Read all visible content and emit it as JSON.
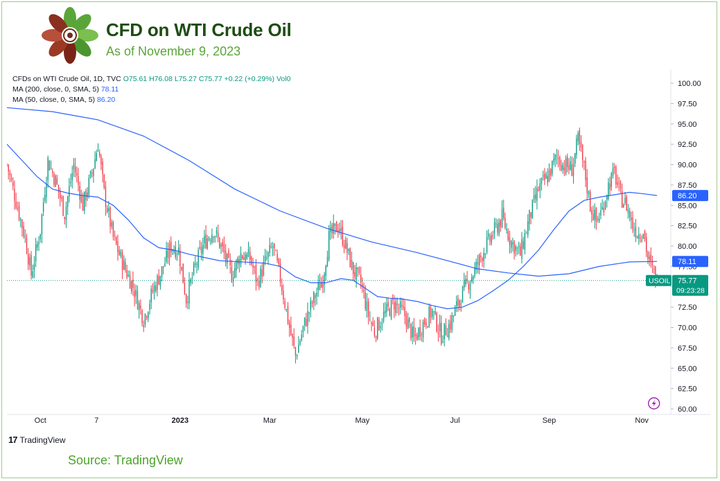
{
  "header": {
    "title": "CFD on WTI Crude Oil",
    "subtitle": "As of November 9, 2023"
  },
  "legend": {
    "main_label": "CFDs on WTI Crude Oil, 1D, TVC",
    "ohlc": {
      "o": "O75.61",
      "h": "H76.08",
      "l": "L75.27",
      "c": "C75.77",
      "chg": "+0.22 (+0.29%)",
      "vol": "Vol0"
    },
    "ma200_label": "MA (200, close, 0, SMA, 5)",
    "ma200_value": "78.11",
    "ma50_label": "MA (50, close, 0, SMA, 5)",
    "ma50_value": "86.20"
  },
  "footer": {
    "brand": "TradingView",
    "source": "Source: TradingView"
  },
  "colors": {
    "up": "#089981",
    "down": "#f23645",
    "ma": "#2962ff",
    "title": "#1d4d13",
    "accent": "#5aa53a"
  },
  "chart_data": {
    "type": "candlestick",
    "ylim": [
      60,
      100
    ],
    "y_ticks": [
      "100.00",
      "97.50",
      "95.00",
      "92.50",
      "90.00",
      "87.50",
      "85.00",
      "82.50",
      "80.00",
      "77.50",
      "75.00",
      "72.50",
      "70.00",
      "67.50",
      "65.00",
      "62.50",
      "60.00"
    ],
    "x_ticks": [
      {
        "label": "Oct",
        "day": 22,
        "bold": false
      },
      {
        "label": "7",
        "day": 59,
        "bold": false
      },
      {
        "label": "2023",
        "day": 114,
        "bold": true
      },
      {
        "label": "Mar",
        "day": 173,
        "bold": false
      },
      {
        "label": "May",
        "day": 234,
        "bold": false
      },
      {
        "label": "Jul",
        "day": 295,
        "bold": false
      },
      {
        "label": "Sep",
        "day": 357,
        "bold": false
      },
      {
        "label": "Nov",
        "day": 418,
        "bold": false
      }
    ],
    "last_price": {
      "symbol": "USOIL",
      "value": "75.77",
      "countdown": "09:23:28",
      "y": 75.77
    },
    "ma_tags": [
      {
        "value": "86.20",
        "y": 86.2
      },
      {
        "value": "78.11",
        "y": 78.11
      }
    ],
    "key_closes": [
      [
        0,
        90.0
      ],
      [
        6,
        85.5
      ],
      [
        12,
        81.0
      ],
      [
        16,
        76.5
      ],
      [
        22,
        82.0
      ],
      [
        27,
        90.5
      ],
      [
        32,
        88.0
      ],
      [
        38,
        84.0
      ],
      [
        44,
        90.0
      ],
      [
        50,
        85.0
      ],
      [
        56,
        89.0
      ],
      [
        60,
        92.5
      ],
      [
        64,
        86.5
      ],
      [
        70,
        81.0
      ],
      [
        76,
        78.0
      ],
      [
        83,
        75.0
      ],
      [
        90,
        71.0
      ],
      [
        96,
        74.5
      ],
      [
        102,
        77.0
      ],
      [
        108,
        80.0
      ],
      [
        113,
        79.5
      ],
      [
        118,
        73.5
      ],
      [
        124,
        77.5
      ],
      [
        130,
        80.5
      ],
      [
        136,
        82.0
      ],
      [
        142,
        79.5
      ],
      [
        148,
        76.5
      ],
      [
        154,
        79.0
      ],
      [
        160,
        78.5
      ],
      [
        165,
        75.5
      ],
      [
        170,
        78.0
      ],
      [
        175,
        80.0
      ],
      [
        180,
        76.0
      ],
      [
        186,
        70.0
      ],
      [
        190,
        66.5
      ],
      [
        196,
        70.5
      ],
      [
        202,
        73.5
      ],
      [
        208,
        76.0
      ],
      [
        212,
        81.0
      ],
      [
        218,
        82.5
      ],
      [
        222,
        80.5
      ],
      [
        228,
        77.0
      ],
      [
        233,
        75.5
      ],
      [
        238,
        71.5
      ],
      [
        242,
        69.5
      ],
      [
        248,
        71.5
      ],
      [
        255,
        73.0
      ],
      [
        262,
        71.5
      ],
      [
        268,
        68.5
      ],
      [
        274,
        70.5
      ],
      [
        280,
        72.0
      ],
      [
        286,
        69.0
      ],
      [
        292,
        70.5
      ],
      [
        298,
        73.5
      ],
      [
        302,
        75.0
      ],
      [
        308,
        77.0
      ],
      [
        314,
        79.5
      ],
      [
        320,
        81.5
      ],
      [
        326,
        83.5
      ],
      [
        332,
        80.5
      ],
      [
        338,
        79.0
      ],
      [
        344,
        83.5
      ],
      [
        350,
        87.0
      ],
      [
        356,
        88.5
      ],
      [
        362,
        91.0
      ],
      [
        366,
        90.0
      ],
      [
        372,
        89.5
      ],
      [
        376,
        93.0
      ],
      [
        380,
        89.5
      ],
      [
        384,
        85.0
      ],
      [
        388,
        83.0
      ],
      [
        392,
        84.5
      ],
      [
        396,
        87.5
      ],
      [
        400,
        89.0
      ],
      [
        404,
        86.0
      ],
      [
        408,
        85.0
      ],
      [
        412,
        82.5
      ],
      [
        416,
        81.5
      ],
      [
        419,
        82.0
      ],
      [
        422,
        78.5
      ],
      [
        425,
        77.0
      ],
      [
        428,
        75.77
      ]
    ],
    "ma200": [
      [
        0,
        97.0
      ],
      [
        30,
        96.5
      ],
      [
        60,
        95.5
      ],
      [
        90,
        93.5
      ],
      [
        120,
        90.5
      ],
      [
        150,
        87.0
      ],
      [
        180,
        84.3
      ],
      [
        210,
        82.2
      ],
      [
        240,
        80.5
      ],
      [
        270,
        79.2
      ],
      [
        290,
        78.2
      ],
      [
        310,
        77.2
      ],
      [
        330,
        76.7
      ],
      [
        350,
        76.3
      ],
      [
        370,
        76.6
      ],
      [
        390,
        77.5
      ],
      [
        410,
        78.05
      ],
      [
        428,
        78.11
      ]
    ],
    "ma50": [
      [
        0,
        92.5
      ],
      [
        10,
        90.5
      ],
      [
        20,
        88.5
      ],
      [
        30,
        87.0
      ],
      [
        40,
        86.5
      ],
      [
        50,
        86.2
      ],
      [
        60,
        86.0
      ],
      [
        70,
        85.0
      ],
      [
        80,
        83.2
      ],
      [
        90,
        81.0
      ],
      [
        100,
        79.8
      ],
      [
        110,
        79.5
      ],
      [
        120,
        79.0
      ],
      [
        130,
        78.6
      ],
      [
        140,
        78.2
      ],
      [
        150,
        78.1
      ],
      [
        160,
        78.0
      ],
      [
        170,
        77.9
      ],
      [
        180,
        77.5
      ],
      [
        190,
        76.2
      ],
      [
        200,
        75.5
      ],
      [
        210,
        75.5
      ],
      [
        220,
        76.0
      ],
      [
        228,
        75.8
      ],
      [
        236,
        74.8
      ],
      [
        244,
        73.8
      ],
      [
        252,
        73.6
      ],
      [
        260,
        73.5
      ],
      [
        270,
        73.2
      ],
      [
        280,
        72.7
      ],
      [
        290,
        72.3
      ],
      [
        300,
        72.5
      ],
      [
        310,
        73.3
      ],
      [
        320,
        74.5
      ],
      [
        330,
        75.8
      ],
      [
        340,
        77.5
      ],
      [
        350,
        79.5
      ],
      [
        360,
        82.0
      ],
      [
        370,
        84.3
      ],
      [
        380,
        85.6
      ],
      [
        390,
        86.0
      ],
      [
        400,
        86.3
      ],
      [
        410,
        86.6
      ],
      [
        420,
        86.4
      ],
      [
        428,
        86.2
      ]
    ]
  }
}
